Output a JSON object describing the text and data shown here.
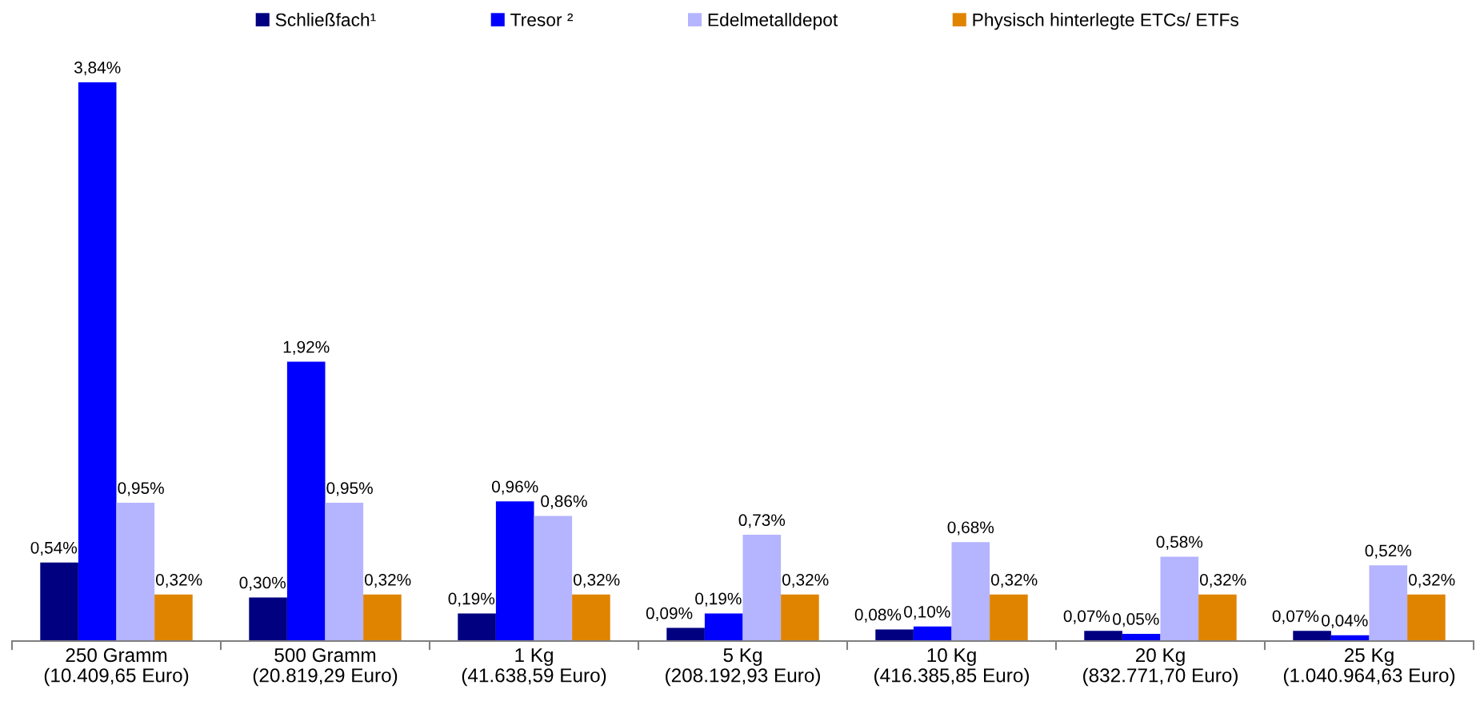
{
  "chart_data": {
    "type": "bar",
    "categories": [
      "250 Gramm\n(10.409,65 Euro)",
      "500 Gramm\n(20.819,29 Euro)",
      "1 Kg\n(41.638,59 Euro)",
      "5 Kg\n(208.192,93 Euro)",
      "10 Kg\n(416.385,85 Euro)",
      "20 Kg\n(832.771,70 Euro)",
      "25 Kg\n(1.040.964,63 Euro)"
    ],
    "series": [
      {
        "name": "Schließfach¹",
        "color": "#000080",
        "values": [
          0.54,
          0.3,
          0.19,
          0.09,
          0.08,
          0.07,
          0.07
        ],
        "value_labels": [
          "0,54%",
          "0,30%",
          "0,19%",
          "0,09%",
          "0,08%",
          "0,07%",
          "0,07%"
        ]
      },
      {
        "name": "Tresor ²",
        "color": "#0000ff",
        "values": [
          3.84,
          1.92,
          0.96,
          0.19,
          0.1,
          0.05,
          0.04
        ],
        "value_labels": [
          "3,84%",
          "1,92%",
          "0,96%",
          "0,19%",
          "0,10%",
          "0,05%",
          "0,04%"
        ]
      },
      {
        "name": "Edelmetalldepot",
        "color": "#b4b4ff",
        "values": [
          0.95,
          0.95,
          0.86,
          0.73,
          0.68,
          0.58,
          0.52
        ],
        "value_labels": [
          "0,95%",
          "0,95%",
          "0,86%",
          "0,73%",
          "0,68%",
          "0,58%",
          "0,52%"
        ]
      },
      {
        "name": "Physisch hinterlegte ETCs/ ETFs",
        "color": "#e08400",
        "values": [
          0.32,
          0.32,
          0.32,
          0.32,
          0.32,
          0.32,
          0.32
        ],
        "value_labels": [
          "0,32%",
          "0,32%",
          "0,32%",
          "0,32%",
          "0,32%",
          "0,32%",
          "0,32%"
        ]
      }
    ],
    "legend": "top"
  }
}
